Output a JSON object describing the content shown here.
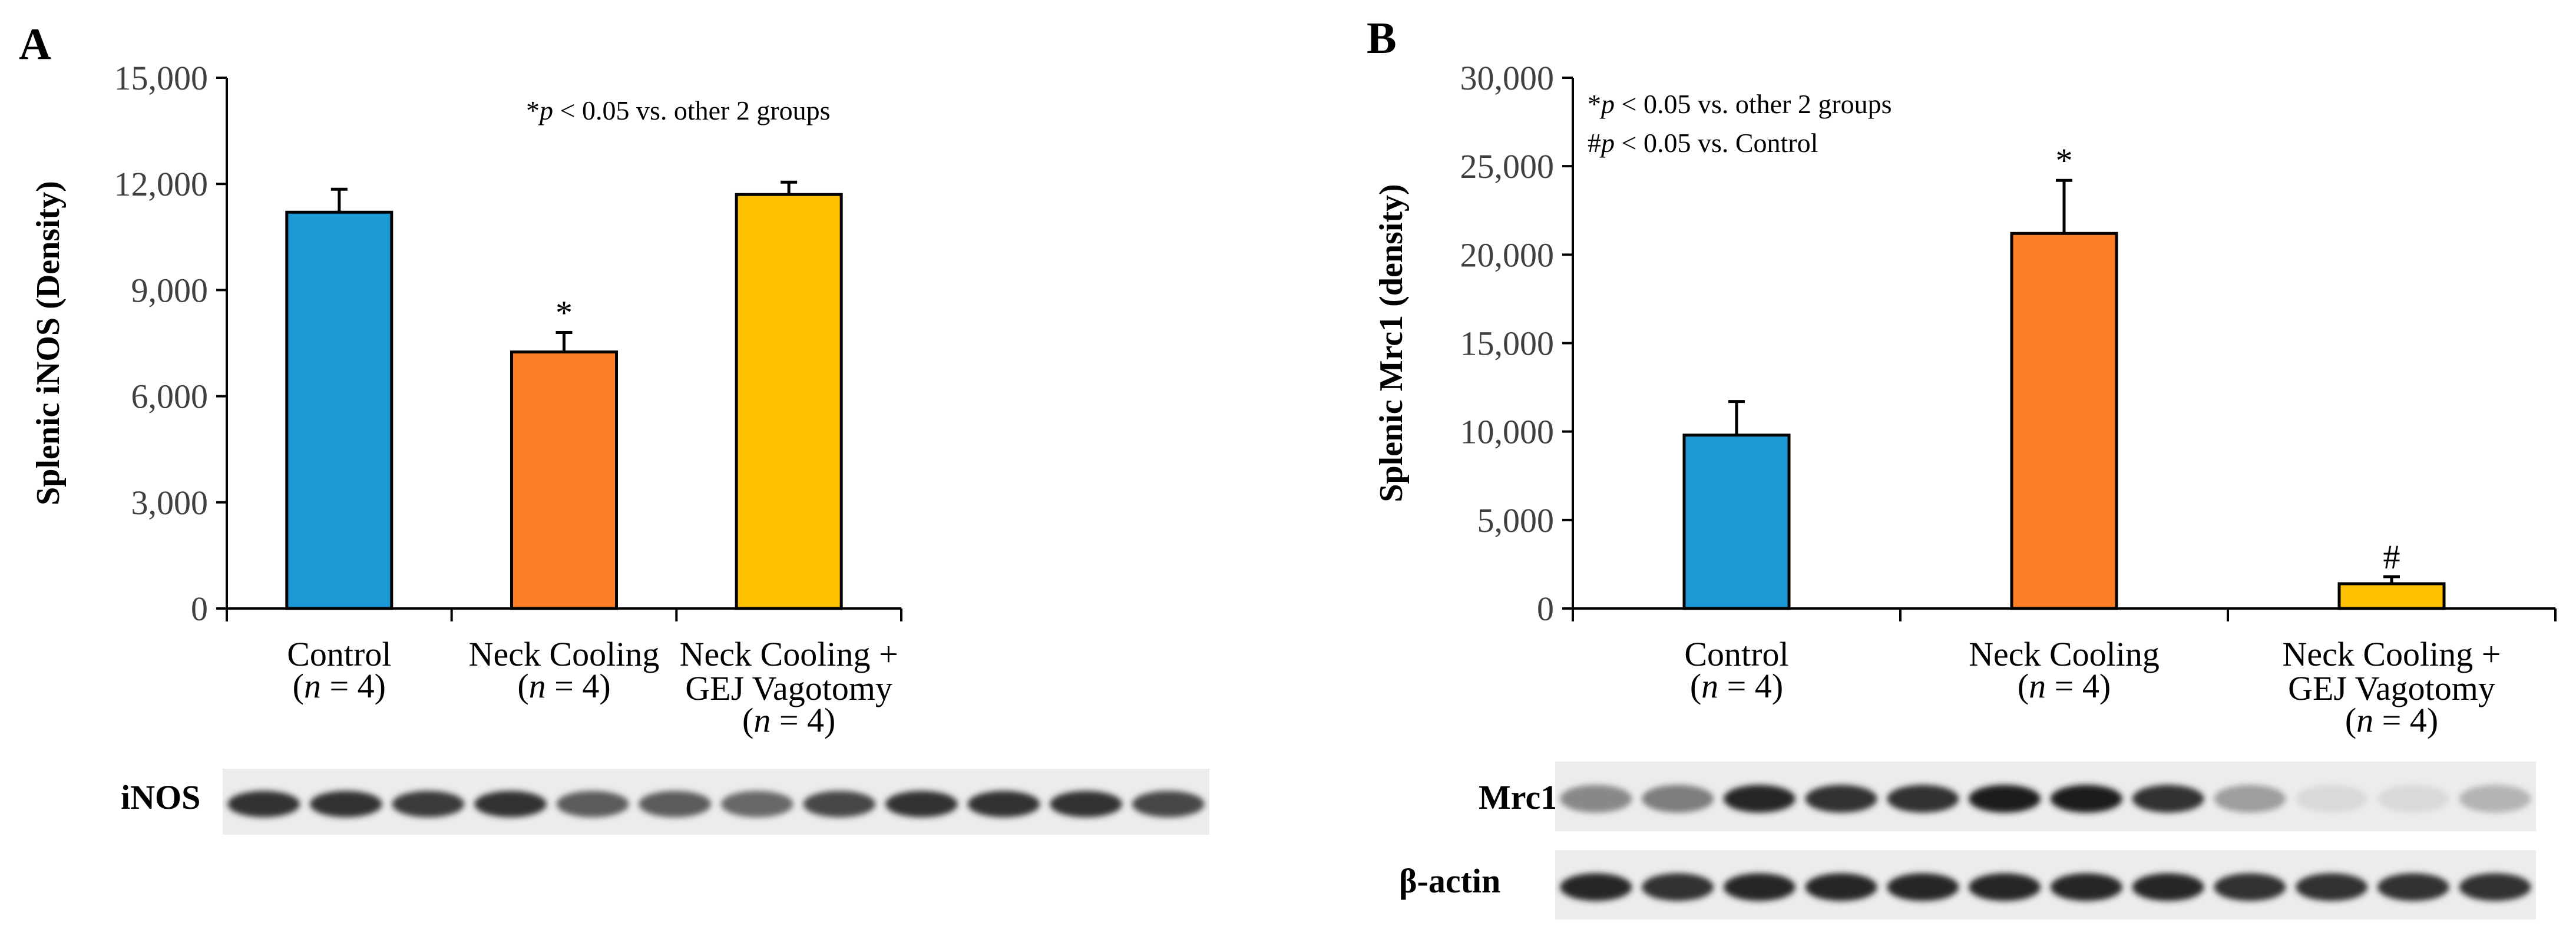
{
  "chart_data": [
    {
      "panel": "A",
      "type": "bar",
      "title": "",
      "ylabel": "Splenic iNOS (Density)",
      "xlabel": "",
      "ylim": [
        0,
        15000
      ],
      "yticks": [
        0,
        3000,
        6000,
        9000,
        12000,
        15000
      ],
      "ytick_labels": [
        "0",
        "3,000",
        "6,000",
        "9,000",
        "12,000",
        "15,000"
      ],
      "annotation": {
        "prefix": "*",
        "p": "p",
        "rest": " < 0.05 vs. other 2 groups"
      },
      "categories": [
        {
          "lines": [
            "Control"
          ],
          "n": "4"
        },
        {
          "lines": [
            "Neck Cooling"
          ],
          "n": "4"
        },
        {
          "lines": [
            "Neck Cooling +",
            "GEJ Vagotomy"
          ],
          "n": "4"
        }
      ],
      "values": [
        11200,
        7250,
        11700
      ],
      "errors": [
        650,
        550,
        350
      ],
      "markers": [
        "",
        "*",
        ""
      ],
      "colors": [
        "#1B9AD6",
        "#FF7F27",
        "#FFC000"
      ],
      "blots": [
        {
          "label": "iNOS",
          "intensities": [
            0.85,
            0.85,
            0.8,
            0.85,
            0.65,
            0.65,
            0.6,
            0.75,
            0.85,
            0.85,
            0.85,
            0.75
          ]
        }
      ]
    },
    {
      "panel": "B",
      "type": "bar",
      "title": "",
      "ylabel": "Splenic Mrc1 (density)",
      "xlabel": "",
      "ylim": [
        0,
        30000
      ],
      "yticks": [
        0,
        5000,
        10000,
        15000,
        20000,
        25000,
        30000
      ],
      "ytick_labels": [
        "0",
        "5,000",
        "10,000",
        "15,000",
        "20,000",
        "25,000",
        "30,000"
      ],
      "annotation": {
        "prefix": "*",
        "p": "p",
        "rest": " < 0.05 vs. other 2 groups"
      },
      "annotation2": {
        "prefix": "#",
        "p": "p",
        "rest": " < 0.05 vs. Control"
      },
      "categories": [
        {
          "lines": [
            "Control"
          ],
          "n": "4"
        },
        {
          "lines": [
            "Neck Cooling"
          ],
          "n": "4"
        },
        {
          "lines": [
            "Neck Cooling +",
            "GEJ Vagotomy"
          ],
          "n": "4"
        }
      ],
      "values": [
        9800,
        21200,
        1400
      ],
      "errors": [
        1900,
        3000,
        400
      ],
      "markers": [
        "",
        "*",
        "#"
      ],
      "colors": [
        "#1B9AD6",
        "#FF7F27",
        "#FFC000"
      ],
      "blots": [
        {
          "label": "Mrc1",
          "intensities": [
            0.45,
            0.5,
            0.9,
            0.85,
            0.85,
            0.95,
            0.95,
            0.85,
            0.35,
            0.08,
            0.08,
            0.25
          ]
        },
        {
          "label": "β-actin",
          "intensities": [
            0.9,
            0.85,
            0.9,
            0.9,
            0.9,
            0.9,
            0.9,
            0.9,
            0.85,
            0.85,
            0.85,
            0.85
          ]
        }
      ]
    }
  ]
}
